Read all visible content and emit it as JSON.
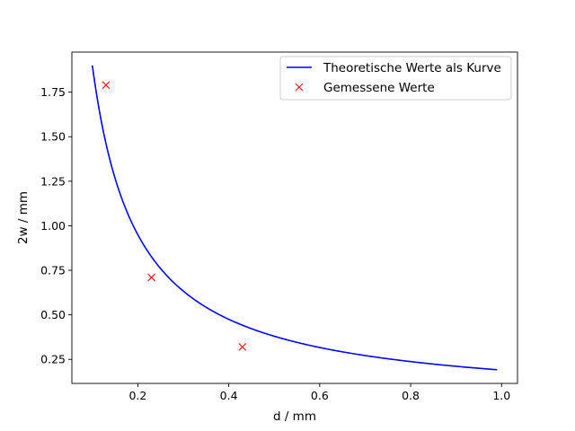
{
  "chart_data": {
    "type": "line",
    "title": "",
    "xlabel": "d / mm",
    "ylabel": "2w / mm",
    "xlim": [
      0.055,
      1.035
    ],
    "ylim": [
      0.115,
      1.975
    ],
    "xticks": [
      0.2,
      0.4,
      0.6,
      0.8,
      1.0
    ],
    "xtick_labels": [
      "0.2",
      "0.4",
      "0.6",
      "0.8",
      "1.0"
    ],
    "yticks": [
      0.25,
      0.5,
      0.75,
      1.0,
      1.25,
      1.5,
      1.75
    ],
    "ytick_labels": [
      "0.25",
      "0.50",
      "0.75",
      "1.00",
      "1.25",
      "1.50",
      "1.75"
    ],
    "grid": false,
    "legend_position": "top-right",
    "series": [
      {
        "name": "Theoretische Werte als Kurve",
        "kind": "line",
        "color": "#0000ff",
        "x_range": [
          0.1,
          0.99
        ],
        "model": "y = 0.19 / x",
        "coefficient": 0.19
      },
      {
        "name": "Gemessene Werte",
        "kind": "scatter",
        "marker": "x",
        "color": "#ff0000",
        "x": [
          0.13,
          0.23,
          0.43
        ],
        "y": [
          1.79,
          0.71,
          0.32
        ]
      }
    ]
  }
}
